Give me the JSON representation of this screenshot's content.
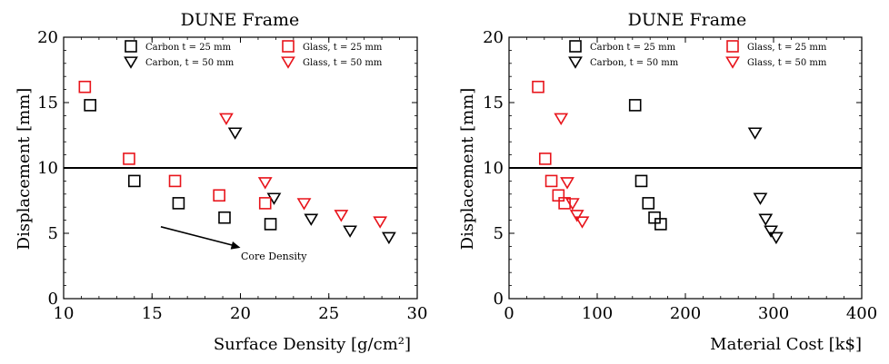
{
  "colors": {
    "carbon": "#000000",
    "glass": "#e8141b",
    "axis": "#000000"
  },
  "chart_data": [
    {
      "type": "scatter",
      "title": "DUNE Frame",
      "xlabel": "Surface Density [g/cm²]",
      "ylabel": "Displacement [mm]",
      "xlim": [
        10,
        30
      ],
      "ylim": [
        0,
        20
      ],
      "xticks": [
        10,
        15,
        20,
        25,
        30
      ],
      "yticks": [
        0,
        5,
        10,
        15,
        20
      ],
      "hline": 10,
      "legend_position": "top-right",
      "series": [
        {
          "name": "Carbon t = 25 mm",
          "marker": "square",
          "color": "black",
          "points": [
            [
              11.5,
              14.8
            ],
            [
              14.0,
              9.0
            ],
            [
              16.5,
              7.3
            ],
            [
              19.1,
              6.2
            ],
            [
              21.7,
              5.7
            ]
          ]
        },
        {
          "name": "Carbon, t = 50 mm",
          "marker": "triangle-down",
          "color": "black",
          "points": [
            [
              19.7,
              12.7
            ],
            [
              21.9,
              7.7
            ],
            [
              24.0,
              6.1
            ],
            [
              26.2,
              5.2
            ],
            [
              28.4,
              4.7
            ]
          ]
        },
        {
          "name": "Glass, t = 25 mm",
          "marker": "square",
          "color": "red",
          "points": [
            [
              11.2,
              16.2
            ],
            [
              13.7,
              10.7
            ],
            [
              16.3,
              9.0
            ],
            [
              18.8,
              7.9
            ],
            [
              21.4,
              7.3
            ]
          ]
        },
        {
          "name": "Glass, t = 50 mm",
          "marker": "triangle-down",
          "color": "red",
          "points": [
            [
              19.2,
              13.8
            ],
            [
              21.4,
              8.9
            ],
            [
              23.6,
              7.3
            ],
            [
              25.7,
              6.4
            ],
            [
              27.9,
              5.9
            ]
          ]
        }
      ],
      "annotation": {
        "text": "Core Density",
        "from": [
          15.5,
          5.5
        ],
        "to": [
          20.0,
          3.9
        ]
      }
    },
    {
      "type": "scatter",
      "title": "DUNE Frame",
      "xlabel": "Material Cost [k$]",
      "ylabel": "Displacement [mm]",
      "xlim": [
        0,
        400
      ],
      "ylim": [
        0,
        20
      ],
      "xticks": [
        0,
        100,
        200,
        300,
        400
      ],
      "yticks": [
        0,
        5,
        10,
        15,
        20
      ],
      "hline": 10,
      "legend_position": "top-right",
      "series": [
        {
          "name": "Carbon t = 25 mm",
          "marker": "square",
          "color": "black",
          "points": [
            [
              143,
              14.8
            ],
            [
              150,
              9.0
            ],
            [
              158,
              7.3
            ],
            [
              165,
              6.2
            ],
            [
              172,
              5.7
            ]
          ]
        },
        {
          "name": "Carbon, t = 50 mm",
          "marker": "triangle-down",
          "color": "black",
          "points": [
            [
              279,
              12.7
            ],
            [
              285,
              7.7
            ],
            [
              291,
              6.1
            ],
            [
              297,
              5.2
            ],
            [
              303,
              4.7
            ]
          ]
        },
        {
          "name": "Glass, t = 25 mm",
          "marker": "square",
          "color": "red",
          "points": [
            [
              33,
              16.2
            ],
            [
              41,
              10.7
            ],
            [
              48,
              9.0
            ],
            [
              56,
              7.9
            ],
            [
              63,
              7.3
            ]
          ]
        },
        {
          "name": "Glass, t = 50 mm",
          "marker": "triangle-down",
          "color": "red",
          "points": [
            [
              59,
              13.8
            ],
            [
              66,
              8.9
            ],
            [
              72,
              7.3
            ],
            [
              77,
              6.4
            ],
            [
              83,
              5.9
            ]
          ]
        }
      ]
    }
  ]
}
